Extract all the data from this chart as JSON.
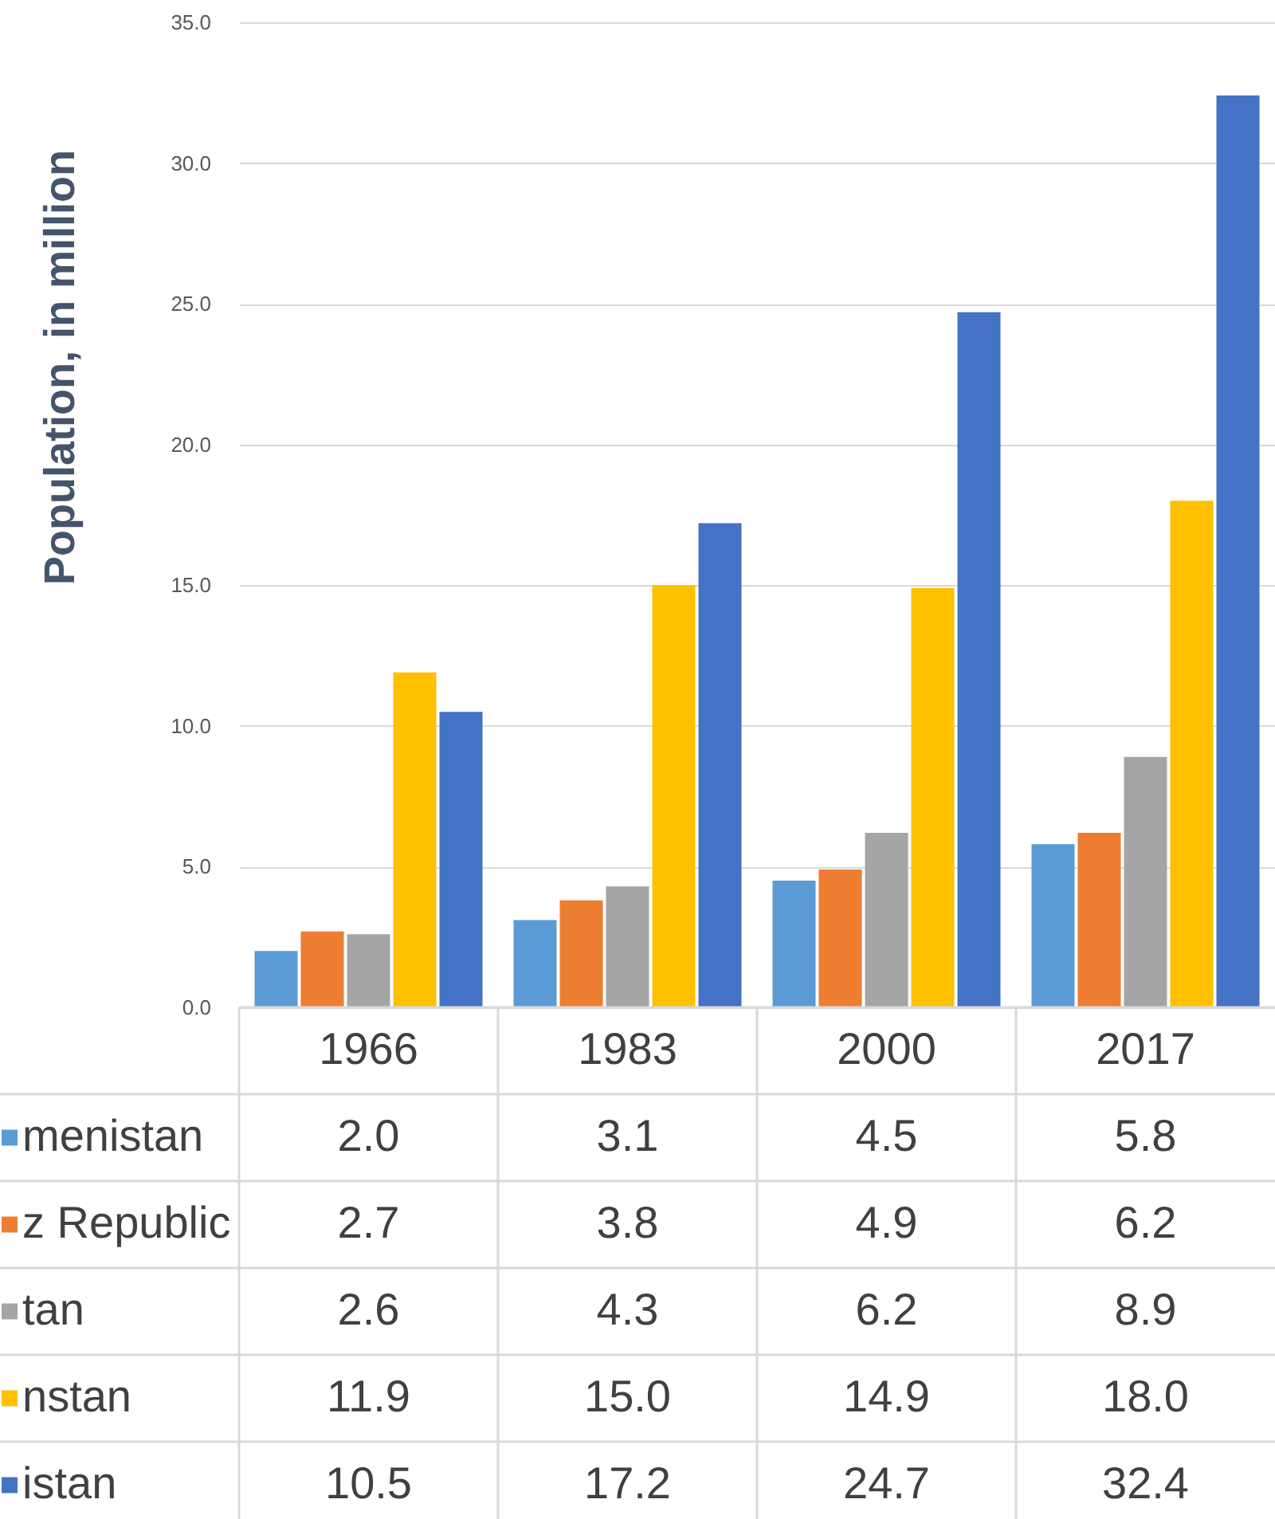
{
  "chart_data": {
    "type": "bar",
    "ylabel": "Population, in million",
    "categories": [
      "1966",
      "1983",
      "2000",
      "2017"
    ],
    "series": [
      {
        "name": "menistan",
        "color": "#5b9bd5",
        "values": [
          2.0,
          3.1,
          4.5,
          5.8
        ],
        "value_labels": [
          "2.0",
          "3.1",
          "4.5",
          "5.8"
        ]
      },
      {
        "name": "z Republic",
        "color": "#ed7d31",
        "values": [
          2.7,
          3.8,
          4.9,
          6.2
        ],
        "value_labels": [
          "2.7",
          "3.8",
          "4.9",
          "6.2"
        ]
      },
      {
        "name": "tan",
        "color": "#a5a5a5",
        "values": [
          2.6,
          4.3,
          6.2,
          8.9
        ],
        "value_labels": [
          "2.6",
          "4.3",
          "6.2",
          "8.9"
        ]
      },
      {
        "name": "nstan",
        "color": "#ffc000",
        "values": [
          11.9,
          15.0,
          14.9,
          18.0
        ],
        "value_labels": [
          "11.9",
          "15.0",
          "14.9",
          "18.0"
        ]
      },
      {
        "name": "istan",
        "color": "#4472c4",
        "values": [
          10.5,
          17.2,
          24.7,
          32.4
        ],
        "value_labels": [
          "10.5",
          "17.2",
          "24.7",
          "32.4"
        ]
      }
    ],
    "ylim": [
      0,
      35
    ],
    "yticks": [
      {
        "value": 0,
        "label": "0.0"
      },
      {
        "value": 5,
        "label": "5.0"
      },
      {
        "value": 10,
        "label": "10.0"
      },
      {
        "value": 15,
        "label": "15.0"
      },
      {
        "value": 20,
        "label": "20.0"
      },
      {
        "value": 25,
        "label": "25.0"
      },
      {
        "value": 30,
        "label": "30.0"
      },
      {
        "value": 35,
        "label": "35.0"
      }
    ],
    "grid": "y",
    "legend": "bottom"
  }
}
